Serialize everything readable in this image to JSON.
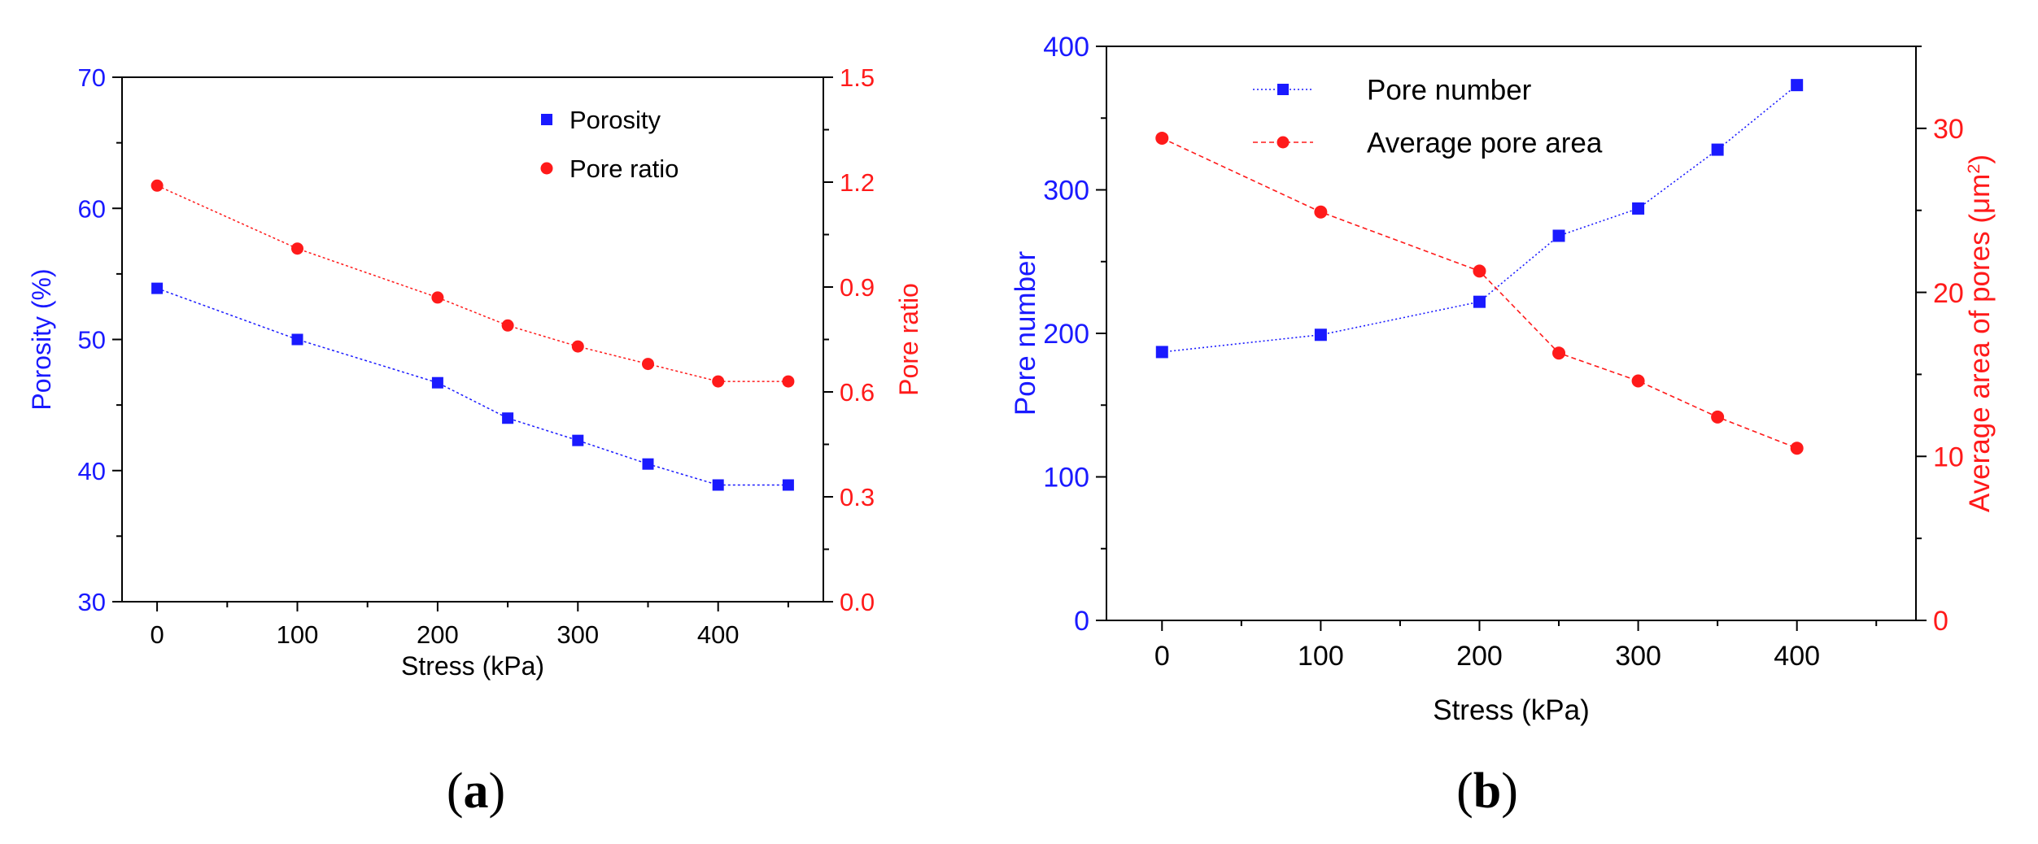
{
  "colors": {
    "blue": "#1a1aff",
    "red": "#ff1a1a",
    "axis": "#000000"
  },
  "panels": {
    "a": {
      "label_open": "(",
      "label_letter": "a",
      "label_close": ")"
    },
    "b": {
      "label_open": "(",
      "label_letter": "b",
      "label_close": ")"
    }
  },
  "chart_data": [
    {
      "id": "a",
      "type": "line",
      "xlabel": "Stress (kPa)",
      "ylabel_left": "Porosity (%)",
      "ylabel_right": "Pore ratio",
      "xlim": [
        -25,
        475
      ],
      "xticks": [
        0,
        100,
        200,
        300,
        400
      ],
      "xtick_labels": [
        "0",
        "100",
        "200",
        "300",
        "400"
      ],
      "ylim_left": [
        30,
        70
      ],
      "yticks_left": [
        30,
        40,
        50,
        60,
        70
      ],
      "ytick_labels_left": [
        "30",
        "40",
        "50",
        "60",
        "70"
      ],
      "ylim_right": [
        0,
        1.5
      ],
      "yticks_right": [
        0,
        0.3,
        0.6,
        0.9,
        1.2,
        1.5
      ],
      "ytick_labels_right": [
        "0.0",
        "0.3",
        "0.6",
        "0.9",
        "1.2",
        "1.5"
      ],
      "legend": "top-right",
      "series": [
        {
          "name": "Porosity",
          "axis": "left",
          "marker": "square",
          "color": "#1a1aff",
          "x": [
            0,
            100,
            200,
            250,
            300,
            350,
            400,
            450
          ],
          "values": [
            53.9,
            50.0,
            46.7,
            44.0,
            42.3,
            40.5,
            38.9,
            38.9
          ]
        },
        {
          "name": "Pore ratio",
          "axis": "right",
          "marker": "circle",
          "color": "#ff1a1a",
          "x": [
            0,
            100,
            200,
            250,
            300,
            350,
            400,
            450
          ],
          "values": [
            1.19,
            1.01,
            0.87,
            0.79,
            0.73,
            0.68,
            0.63,
            0.63
          ]
        }
      ]
    },
    {
      "id": "b",
      "type": "line",
      "xlabel": "Stress (kPa)",
      "ylabel_left": "Pore number",
      "ylabel_right_prefix": "Average area of pores (μm",
      "ylabel_right_sup": "2",
      "ylabel_right_suffix": ")",
      "xlim": [
        -35,
        475
      ],
      "xticks": [
        0,
        100,
        200,
        300,
        400
      ],
      "xtick_labels": [
        "0",
        "100",
        "200",
        "300",
        "400"
      ],
      "ylim_left": [
        0,
        400
      ],
      "yticks_left": [
        0,
        100,
        200,
        300,
        400
      ],
      "ytick_labels_left": [
        "0",
        "100",
        "200",
        "300",
        "400"
      ],
      "ylim_right": [
        0,
        35
      ],
      "yticks_right": [
        0,
        10,
        20,
        30
      ],
      "ytick_labels_right": [
        "0",
        "10",
        "20",
        "30"
      ],
      "legend": "top-center",
      "series": [
        {
          "name": "Pore number",
          "axis": "left",
          "marker": "square",
          "color": "#1a1aff",
          "x": [
            0,
            100,
            200,
            250,
            300,
            350,
            400
          ],
          "values": [
            187,
            199,
            222,
            268,
            287,
            328,
            373
          ]
        },
        {
          "name": "Average pore area",
          "axis": "right",
          "marker": "circle",
          "color": "#ff1a1a",
          "x": [
            0,
            100,
            200,
            250,
            300,
            350,
            400
          ],
          "values": [
            29.4,
            24.9,
            21.3,
            16.3,
            14.6,
            12.4,
            10.5
          ]
        }
      ]
    }
  ]
}
